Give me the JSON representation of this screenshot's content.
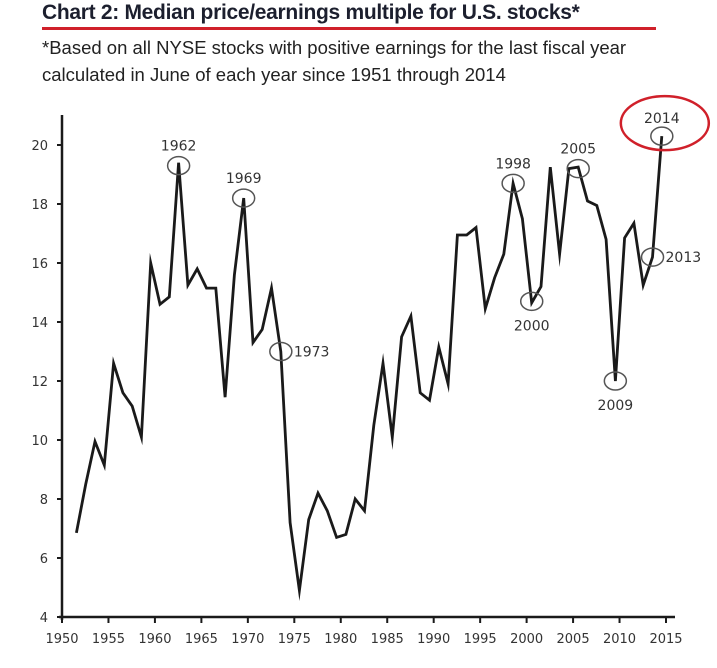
{
  "header": {
    "title": "Chart 2: Median price/earnings multiple for U.S. stocks*",
    "subtitle": "*Based on all NYSE stocks with positive earnings for the last fiscal year calculated in June of each year since 1951 through 2014"
  },
  "colors": {
    "line": "#1a1a1a",
    "axis": "#1a1a1a",
    "annotation_circle": "#555555",
    "highlight": "#d0202a",
    "title": "#1c1f2e"
  },
  "chart_data": {
    "type": "line",
    "title": "Median price/earnings multiple for U.S. stocks",
    "xlabel": "",
    "ylabel": "",
    "xlim": [
      1950,
      2015
    ],
    "ylim": [
      4,
      21
    ],
    "grid": false,
    "x_ticks": [
      1950,
      1955,
      1960,
      1965,
      1970,
      1975,
      1980,
      1985,
      1990,
      1995,
      2000,
      2005,
      2010,
      2015
    ],
    "y_ticks": [
      4,
      6,
      8,
      10,
      12,
      14,
      16,
      18,
      20
    ],
    "series": [
      {
        "name": "Median P/E",
        "x": [
          1951,
          1952,
          1953,
          1954,
          1955,
          1956,
          1957,
          1958,
          1959,
          1960,
          1961,
          1962,
          1963,
          1964,
          1965,
          1966,
          1967,
          1968,
          1969,
          1970,
          1971,
          1972,
          1973,
          1974,
          1975,
          1976,
          1977,
          1978,
          1979,
          1980,
          1981,
          1982,
          1983,
          1984,
          1985,
          1986,
          1987,
          1988,
          1989,
          1990,
          1991,
          1992,
          1993,
          1994,
          1995,
          1996,
          1997,
          1998,
          1999,
          2000,
          2001,
          2002,
          2003,
          2004,
          2005,
          2006,
          2007,
          2008,
          2009,
          2010,
          2011,
          2012,
          2013,
          2014
        ],
        "values": [
          6.85,
          8.5,
          9.95,
          9.15,
          12.6,
          11.6,
          11.15,
          10.1,
          16.0,
          14.6,
          14.85,
          19.4,
          15.25,
          15.8,
          15.15,
          15.15,
          11.45,
          15.6,
          18.2,
          13.3,
          13.75,
          15.15,
          13.0,
          7.2,
          4.9,
          7.3,
          8.2,
          7.6,
          6.7,
          6.8,
          8.0,
          7.6,
          10.5,
          12.6,
          10.1,
          13.5,
          14.2,
          11.6,
          11.35,
          13.15,
          11.9,
          16.95,
          16.95,
          17.2,
          14.45,
          15.5,
          16.3,
          18.7,
          17.5,
          14.65,
          15.2,
          19.25,
          16.3,
          19.2,
          19.25,
          18.1,
          17.95,
          16.8,
          12.0,
          16.85,
          17.35,
          15.25,
          16.2,
          20.3
        ]
      }
    ],
    "annotations": [
      {
        "label": "1962",
        "year": 1962,
        "value": 19.3,
        "label_position": "above",
        "highlight": false
      },
      {
        "label": "1969",
        "year": 1969,
        "value": 18.2,
        "label_position": "above",
        "highlight": false
      },
      {
        "label": "1973",
        "year": 1973,
        "value": 13.0,
        "label_position": "right",
        "highlight": false
      },
      {
        "label": "1998",
        "year": 1998,
        "value": 18.7,
        "label_position": "above",
        "highlight": false
      },
      {
        "label": "2000",
        "year": 2000,
        "value": 14.7,
        "label_position": "below",
        "highlight": false
      },
      {
        "label": "2005",
        "year": 2005,
        "value": 19.2,
        "label_position": "above",
        "highlight": false
      },
      {
        "label": "2009",
        "year": 2009,
        "value": 12.0,
        "label_position": "below",
        "highlight": false
      },
      {
        "label": "2013",
        "year": 2013,
        "value": 16.2,
        "label_position": "right",
        "highlight": false
      },
      {
        "label": "2014",
        "year": 2014,
        "value": 20.3,
        "label_position": "above",
        "highlight": true
      }
    ]
  }
}
